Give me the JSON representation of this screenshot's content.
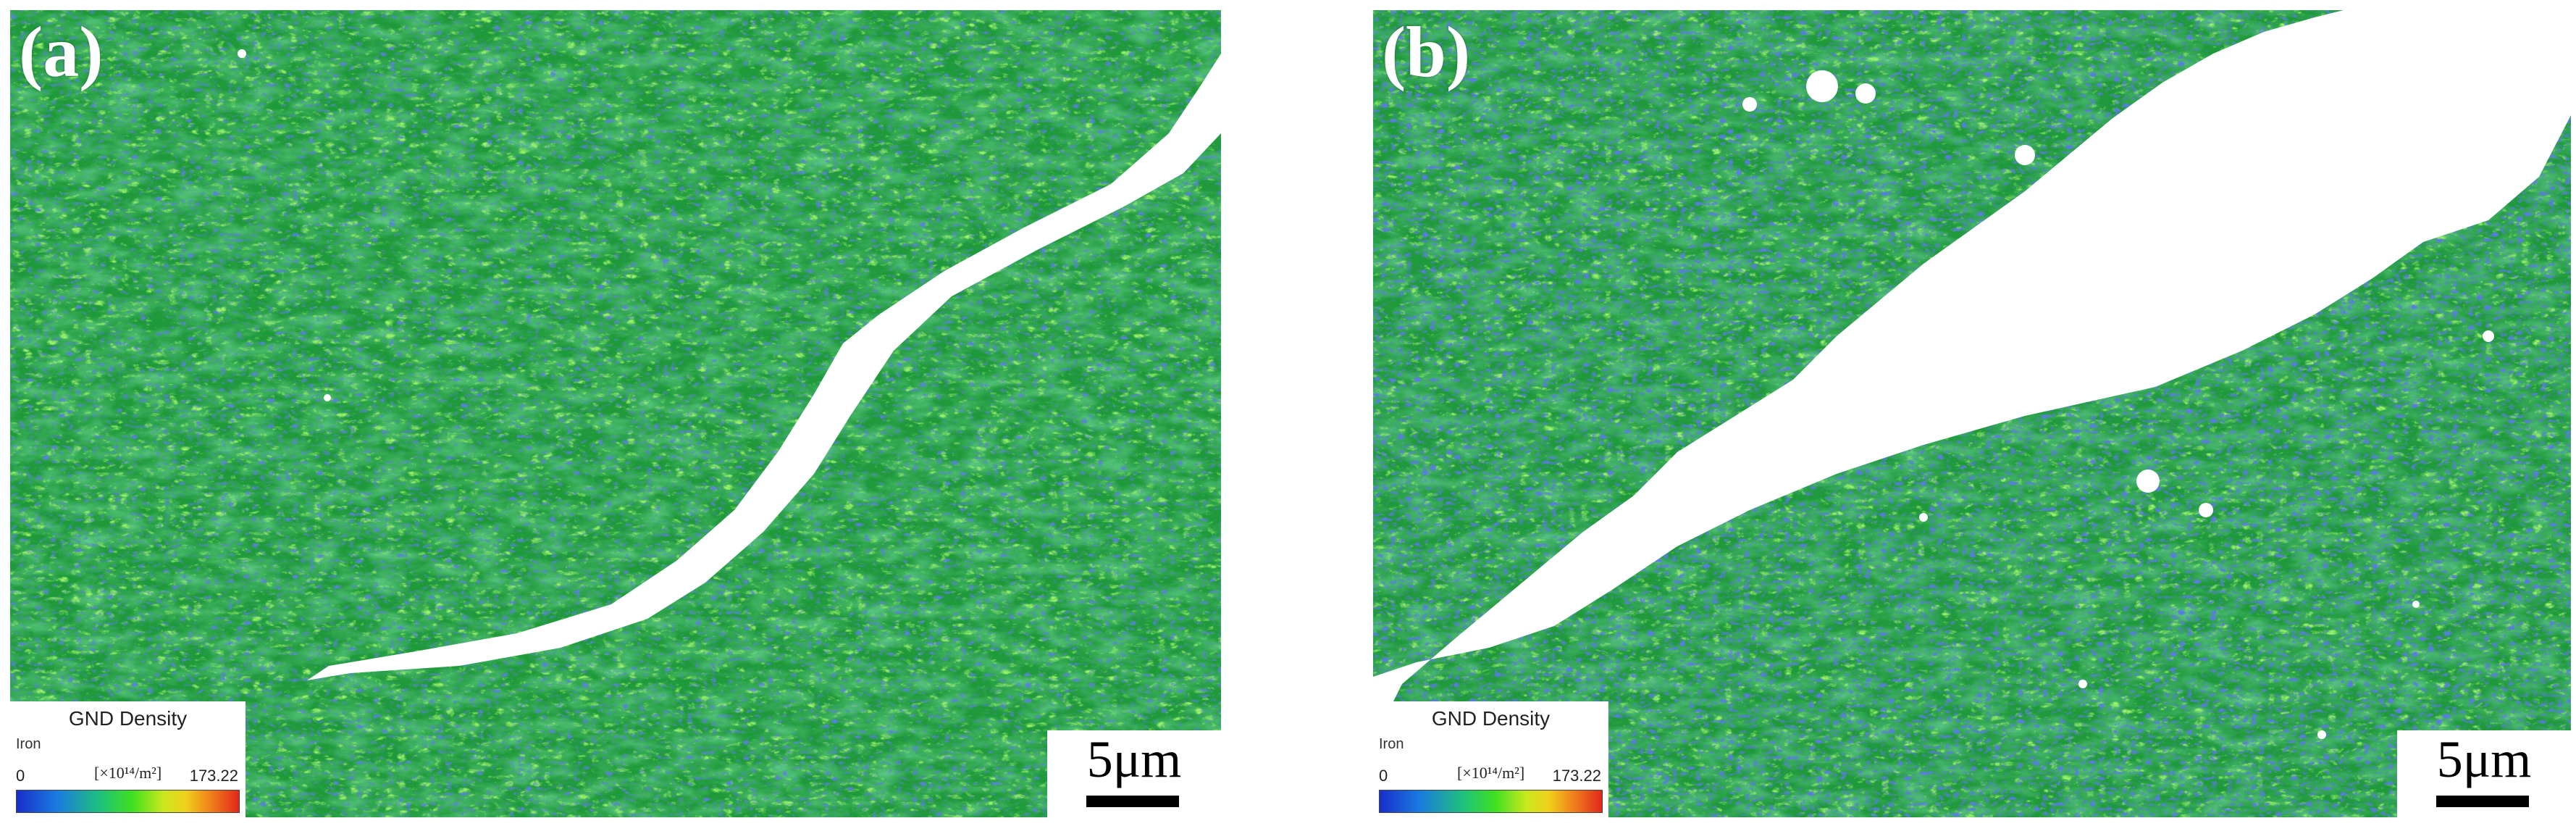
{
  "panels": [
    {
      "label": "(a)",
      "legend": {
        "title": "GND Density",
        "phase": "Iron",
        "min": "0",
        "unit": "[×10¹⁴/m²]",
        "max": "173.22"
      },
      "scale_bar": "5μm"
    },
    {
      "label": "(b)",
      "legend": {
        "title": "GND Density",
        "phase": "Iron",
        "min": "0",
        "unit": "[×10¹⁴/m²]",
        "max": "173.22"
      },
      "scale_bar": "5μm"
    }
  ],
  "colors": {
    "matrix_green": "#1f9a3a",
    "high_green": "#4ee020",
    "low_blue": "#1a3fb0",
    "crack": "#ffffff"
  }
}
